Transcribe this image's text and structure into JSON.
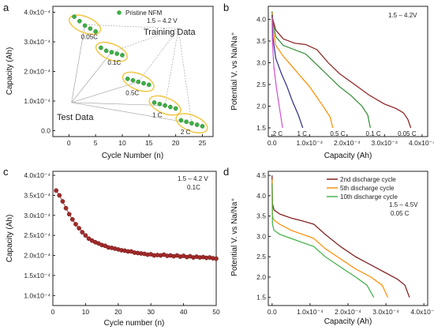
{
  "chart_data": [
    {
      "panel": "a",
      "type": "scatter",
      "xlabel": "Cycle Number (n)",
      "ylabel": "Capacity (Ah)",
      "xlim": [
        -3,
        27
      ],
      "ylim": [
        -2e-05,
        0.00042
      ],
      "xticks": [
        "0",
        "5",
        "10",
        "15",
        "20",
        "25"
      ],
      "yticks": [
        "0.0",
        "1.0x10⁻⁴",
        "2.0x10⁻⁴",
        "3.0x10⁻⁴",
        "4.0x10⁻⁴"
      ],
      "legend": "Pristine NFM",
      "voltage": "1.5 – 4.2 V",
      "annotations": {
        "training": "Training Data",
        "test": "Test Data"
      },
      "series": [
        {
          "name": "0.05C",
          "x": [
            1,
            2,
            3,
            4,
            5
          ],
          "y": [
            0.000385,
            0.00037,
            0.000355,
            0.000345,
            0.000335
          ]
        },
        {
          "name": "0.1C",
          "x": [
            6,
            7,
            8,
            9,
            10
          ],
          "y": [
            0.00028,
            0.00027,
            0.000265,
            0.00026,
            0.000255
          ]
        },
        {
          "name": "0.5C",
          "x": [
            11,
            12,
            13,
            14,
            15
          ],
          "y": [
            0.000175,
            0.00017,
            0.000165,
            0.00016,
            0.000155
          ]
        },
        {
          "name": "1 C",
          "x": [
            16,
            17,
            18,
            19,
            20
          ],
          "y": [
            9.5e-05,
            9e-05,
            8.5e-05,
            8e-05,
            7.5e-05
          ]
        },
        {
          "name": "2 C",
          "x": [
            21,
            22,
            23,
            24,
            25
          ],
          "y": [
            3.5e-05,
            3e-05,
            2.5e-05,
            2e-05,
            1.5e-05
          ]
        }
      ]
    },
    {
      "panel": "b",
      "type": "line",
      "xlabel": "Capacity (Ah)",
      "ylabel": "Potential V. vs Na/Na⁺",
      "xlim": [
        -1e-05,
        0.000415
      ],
      "ylim": [
        1.3,
        4.3
      ],
      "xticks": [
        "0.0",
        "1.0x10⁻⁴",
        "2.0x10⁻⁴",
        "3.0x10⁻⁴",
        "4.0x10⁻⁴"
      ],
      "yticks": [
        "1.5",
        "2.0",
        "2.5",
        "3.0",
        "3.5",
        "4.0"
      ],
      "voltage": "1.5 – 4.2V",
      "series": [
        {
          "name": "0.05 C",
          "color": "#8b1a1a",
          "x": [
            0,
            2e-06,
            1e-05,
            3e-05,
            6e-05,
            9e-05,
            0.00012,
            0.00015,
            0.00018,
            0.00022,
            0.00026,
            0.0003,
            0.00033,
            0.00035,
            0.000362,
            0.00037
          ],
          "y": [
            4.18,
            4.0,
            3.75,
            3.55,
            3.45,
            3.42,
            3.3,
            3.0,
            2.75,
            2.5,
            2.25,
            2.05,
            1.95,
            1.85,
            1.7,
            1.5
          ]
        },
        {
          "name": "0.1 C",
          "color": "#2e8b2e",
          "x": [
            0,
            2e-06,
            1e-05,
            3e-05,
            6e-05,
            9e-05,
            0.00012,
            0.00015,
            0.00018,
            0.00021,
            0.00024,
            0.000255,
            0.000262
          ],
          "y": [
            4.18,
            3.95,
            3.6,
            3.4,
            3.3,
            3.2,
            2.95,
            2.7,
            2.45,
            2.25,
            2.0,
            1.8,
            1.5
          ]
        },
        {
          "name": "0.5 C",
          "color": "#ff8c00",
          "x": [
            0,
            2e-06,
            1e-05,
            3e-05,
            5e-05,
            8e-05,
            0.0001,
            0.00012,
            0.00014,
            0.000155,
            0.000162
          ],
          "y": [
            4.15,
            3.8,
            3.4,
            3.15,
            2.95,
            2.65,
            2.45,
            2.2,
            1.95,
            1.75,
            1.5
          ]
        },
        {
          "name": "1 C",
          "color": "#2a2a8a",
          "x": [
            0,
            2e-06,
            1e-05,
            2.5e-05,
            4e-05,
            5.5e-05,
            7e-05,
            8.2e-05
          ],
          "y": [
            4.1,
            3.6,
            3.1,
            2.75,
            2.45,
            2.1,
            1.8,
            1.5
          ]
        },
        {
          "name": "2 C",
          "color": "#d04fd0",
          "x": [
            0,
            1e-06,
            5e-06,
            1.2e-05,
            2e-05,
            2.8e-05
          ],
          "y": [
            4.05,
            3.5,
            2.9,
            2.4,
            1.95,
            1.5
          ]
        }
      ]
    },
    {
      "panel": "c",
      "type": "scatter",
      "xlabel": "Cycle number (n)",
      "ylabel": "Capacity (Ah)",
      "xlim": [
        0,
        50
      ],
      "ylim": [
        7.5e-05,
        0.00041
      ],
      "xticks": [
        "0",
        "10",
        "20",
        "30",
        "40",
        "50"
      ],
      "yticks": [
        "1.0x10⁻⁴",
        "1.5x10⁻⁴",
        "2.0x10⁻⁴",
        "2.5x10⁻⁴",
        "3.0x10⁻⁴",
        "3.5x10⁻⁴",
        "4.0x10⁻⁴"
      ],
      "voltage": "1.5 – 4.2 V",
      "rate": "0.1C",
      "x": [
        1,
        2,
        3,
        4,
        5,
        6,
        7,
        8,
        9,
        10,
        11,
        12,
        13,
        14,
        15,
        16,
        17,
        18,
        19,
        20,
        21,
        22,
        23,
        24,
        25,
        26,
        27,
        28,
        29,
        30,
        31,
        32,
        33,
        34,
        35,
        36,
        37,
        38,
        39,
        40,
        41,
        42,
        43,
        44,
        45,
        46,
        47,
        48,
        49,
        50
      ],
      "y": [
        0.000362,
        0.00035,
        0.000335,
        0.000318,
        0.000303,
        0.00029,
        0.000278,
        0.000268,
        0.000258,
        0.00025,
        0.000242,
        0.000237,
        0.000233,
        0.00023,
        0.000226,
        0.000224,
        0.00022,
        0.000219,
        0.000217,
        0.000215,
        0.000213,
        0.000212,
        0.00021,
        0.00021,
        0.000207,
        0.000206,
        0.000205,
        0.000204,
        0.000202,
        0.000203,
        0.0002,
        0.000201,
        0.0002,
        0.000202,
        0.000199,
        0.0002,
        0.000198,
        0.0002,
        0.000197,
        0.000199,
        0.000196,
        0.000198,
        0.000195,
        0.000197,
        0.000195,
        0.000196,
        0.000194,
        0.000195,
        0.000193,
        0.000192
      ],
      "color": "#8b1a1a"
    },
    {
      "panel": "d",
      "type": "line",
      "xlabel": "Capacity (Ah)",
      "ylabel": "Potential V. vs Na/Na⁺",
      "xlim": [
        -1e-05,
        0.00041
      ],
      "ylim": [
        1.3,
        4.6
      ],
      "xticks": [
        "0.0",
        "1.0x10⁻⁴",
        "2.0x10⁻⁴",
        "3.0x10⁻⁴",
        "4.0x10⁻⁴"
      ],
      "yticks": [
        "1.5",
        "2.0",
        "2.5",
        "3.0",
        "3.5",
        "4.0",
        "4.5"
      ],
      "voltage": "1.5 – 4.5V",
      "rate": "0.05 C",
      "series": [
        {
          "name": "2nd discharge cycle",
          "color": "#7b1010",
          "x": [
            0,
            1e-06,
            5e-06,
            2e-05,
            5e-05,
            8e-05,
            0.00011,
            0.00014,
            0.00018,
            0.00022,
            0.00026,
            0.0003,
            0.00033,
            0.00035,
            0.000362
          ],
          "y": [
            4.5,
            3.8,
            3.65,
            3.55,
            3.45,
            3.38,
            3.3,
            3.05,
            2.75,
            2.5,
            2.3,
            2.1,
            1.95,
            1.8,
            1.5
          ]
        },
        {
          "name": "5th discharge cycle",
          "color": "#ff8c00",
          "x": [
            0,
            1e-06,
            5e-06,
            2e-05,
            5e-05,
            8e-05,
            0.00011,
            0.00014,
            0.00018,
            0.00022,
            0.00026,
            0.00029,
            0.000305
          ],
          "y": [
            4.4,
            3.5,
            3.4,
            3.3,
            3.15,
            3.05,
            2.95,
            2.7,
            2.45,
            2.2,
            2.0,
            1.8,
            1.5
          ]
        },
        {
          "name": "10th discharge cycle",
          "color": "#3cb043",
          "x": [
            0,
            1e-06,
            5e-06,
            2e-05,
            5e-05,
            8e-05,
            0.00011,
            0.00014,
            0.00018,
            0.00022,
            0.00025,
            0.000268
          ],
          "y": [
            4.3,
            3.3,
            3.15,
            3.05,
            2.95,
            2.85,
            2.75,
            2.5,
            2.25,
            2.0,
            1.8,
            1.5
          ]
        }
      ]
    }
  ],
  "panel_labels": [
    "a",
    "b",
    "c",
    "d"
  ],
  "panel_b_labels": [
    "2 C",
    "1 C",
    "0.5 C",
    "0.1 C",
    "0.05 C"
  ],
  "panel_a_rates": [
    "0.05C",
    "0.1C",
    "0.5C",
    "1 C",
    "2 C"
  ]
}
